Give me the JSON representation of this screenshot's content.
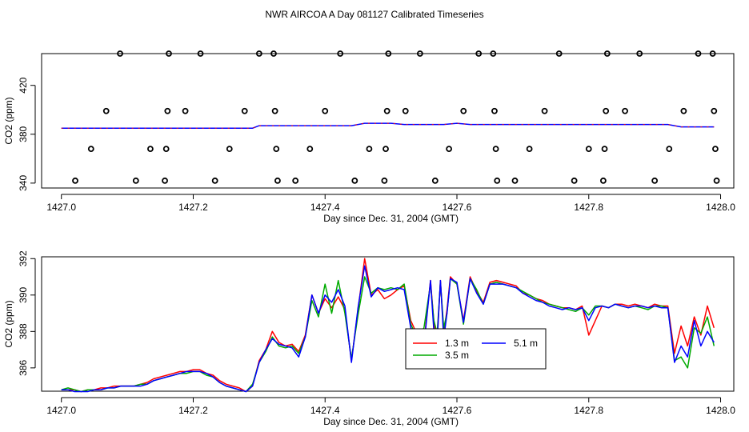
{
  "page": {
    "title": "NWR AIRCOA A  Day 081127  Calibrated Timeseries"
  },
  "chart_data": [
    {
      "type": "scatter",
      "xlabel": "Day since Dec. 31, 2004 (GMT)",
      "ylabel": "CO2 (ppm)",
      "xlim": [
        1426.97,
        1428.02
      ],
      "ylim": [
        336,
        446
      ],
      "xticks": [
        "1427.0",
        "1427.2",
        "1427.4",
        "1427.6",
        "1427.8",
        "1428.0"
      ],
      "xtick_values": [
        1427.0,
        1427.2,
        1427.4,
        1427.6,
        1427.8,
        1428.0
      ],
      "yticks": [
        "340",
        "380",
        "420"
      ],
      "ytick_values": [
        340,
        380,
        420
      ],
      "grid": false,
      "series": [
        {
          "color": "#000000",
          "marker": "open-circle",
          "points": [
            [
              1427.021,
              342
            ],
            [
              1427.045,
              368
            ],
            [
              1427.068,
              399
            ],
            [
              1427.089,
              446
            ],
            [
              1427.113,
              342
            ],
            [
              1427.135,
              368
            ],
            [
              1427.157,
              342
            ],
            [
              1427.159,
              368
            ],
            [
              1427.161,
              399
            ],
            [
              1427.163,
              446
            ],
            [
              1427.188,
              399
            ],
            [
              1427.211,
              446
            ],
            [
              1427.233,
              342
            ],
            [
              1427.255,
              368
            ],
            [
              1427.278,
              399
            ],
            [
              1427.3,
              446
            ],
            [
              1427.322,
              446
            ],
            [
              1427.324,
              399
            ],
            [
              1427.326,
              368
            ],
            [
              1427.328,
              342
            ],
            [
              1427.355,
              342
            ],
            [
              1427.377,
              368
            ],
            [
              1427.4,
              399
            ],
            [
              1427.423,
              446
            ],
            [
              1427.445,
              342
            ],
            [
              1427.467,
              368
            ],
            [
              1427.49,
              342
            ],
            [
              1427.492,
              368
            ],
            [
              1427.494,
              399
            ],
            [
              1427.496,
              446
            ],
            [
              1427.522,
              399
            ],
            [
              1427.544,
              446
            ],
            [
              1427.567,
              342
            ],
            [
              1427.588,
              368
            ],
            [
              1427.61,
              399
            ],
            [
              1427.633,
              446
            ],
            [
              1427.655,
              446
            ],
            [
              1427.657,
              399
            ],
            [
              1427.659,
              368
            ],
            [
              1427.661,
              342
            ],
            [
              1427.688,
              342
            ],
            [
              1427.71,
              368
            ],
            [
              1427.733,
              399
            ],
            [
              1427.755,
              446
            ],
            [
              1427.778,
              342
            ],
            [
              1427.8,
              368
            ],
            [
              1427.822,
              342
            ],
            [
              1427.824,
              368
            ],
            [
              1427.826,
              399
            ],
            [
              1427.828,
              446
            ],
            [
              1427.855,
              399
            ],
            [
              1427.877,
              446
            ],
            [
              1427.9,
              342
            ],
            [
              1427.922,
              368
            ],
            [
              1427.944,
              399
            ],
            [
              1427.966,
              446
            ],
            [
              1427.988,
              446
            ],
            [
              1427.99,
              399
            ],
            [
              1427.992,
              368
            ],
            [
              1427.994,
              342
            ]
          ]
        },
        {
          "name": "1.3 m",
          "color": "#ff0000",
          "marker": "line",
          "x": [
            1427.0,
            1427.05,
            1427.1,
            1427.15,
            1427.2,
            1427.25,
            1427.28,
            1427.29,
            1427.3,
            1427.32,
            1427.35,
            1427.38,
            1427.4,
            1427.42,
            1427.44,
            1427.46,
            1427.48,
            1427.5,
            1427.52,
            1427.54,
            1427.56,
            1427.58,
            1427.6,
            1427.62,
            1427.64,
            1427.66,
            1427.68,
            1427.7,
            1427.72,
            1427.74,
            1427.76,
            1427.78,
            1427.8,
            1427.82,
            1427.84,
            1427.86,
            1427.88,
            1427.9,
            1427.92,
            1427.94,
            1427.96,
            1427.98,
            1427.99
          ],
          "y": [
            385,
            385,
            385,
            385,
            385,
            385,
            385,
            385,
            387,
            387,
            387,
            387,
            387,
            387,
            387,
            389,
            389,
            389,
            388,
            388,
            388,
            388,
            389,
            388,
            388,
            388,
            388,
            388,
            388,
            388,
            388,
            388,
            388,
            388,
            388,
            388,
            388,
            388,
            388,
            386,
            386,
            386,
            386
          ]
        }
      ]
    },
    {
      "type": "line",
      "xlabel": "Day since Dec. 31, 2004 (GMT)",
      "ylabel": "CO2 (ppm)",
      "xlim": [
        1426.97,
        1428.02
      ],
      "ylim": [
        384.72,
        392.1
      ],
      "xticks": [
        "1427.0",
        "1427.2",
        "1427.4",
        "1427.6",
        "1427.8",
        "1428.0"
      ],
      "xtick_values": [
        1427.0,
        1427.2,
        1427.4,
        1427.6,
        1427.8,
        1428.0
      ],
      "yticks": [
        "386",
        "388",
        "390",
        "392"
      ],
      "ytick_values": [
        386,
        388,
        390,
        392
      ],
      "grid": false,
      "legend": {
        "position": "center-right",
        "entries": [
          {
            "label": "1.3 m",
            "color": "#ff0000"
          },
          {
            "label": "3.5 m",
            "color": "#00aa00"
          },
          {
            "label": "5.1 m",
            "color": "#0000ff"
          }
        ]
      },
      "x": [
        1427.0,
        1427.01,
        1427.02,
        1427.03,
        1427.04,
        1427.05,
        1427.06,
        1427.07,
        1427.08,
        1427.09,
        1427.1,
        1427.11,
        1427.12,
        1427.13,
        1427.14,
        1427.15,
        1427.16,
        1427.17,
        1427.18,
        1427.19,
        1427.2,
        1427.21,
        1427.22,
        1427.23,
        1427.24,
        1427.25,
        1427.26,
        1427.27,
        1427.28,
        1427.29,
        1427.3,
        1427.31,
        1427.32,
        1427.33,
        1427.34,
        1427.35,
        1427.36,
        1427.37,
        1427.38,
        1427.39,
        1427.4,
        1427.41,
        1427.42,
        1427.43,
        1427.44,
        1427.45,
        1427.46,
        1427.47,
        1427.48,
        1427.49,
        1427.5,
        1427.51,
        1427.52,
        1427.53,
        1427.54,
        1427.55,
        1427.56,
        1427.565,
        1427.57,
        1427.575,
        1427.58,
        1427.585,
        1427.59,
        1427.6,
        1427.61,
        1427.62,
        1427.63,
        1427.64,
        1427.65,
        1427.66,
        1427.67,
        1427.68,
        1427.69,
        1427.7,
        1427.71,
        1427.72,
        1427.73,
        1427.74,
        1427.75,
        1427.76,
        1427.77,
        1427.78,
        1427.79,
        1427.8,
        1427.81,
        1427.82,
        1427.83,
        1427.84,
        1427.85,
        1427.86,
        1427.87,
        1427.88,
        1427.89,
        1427.9,
        1427.91,
        1427.92,
        1427.93,
        1427.94,
        1427.95,
        1427.96,
        1427.97,
        1427.98,
        1427.99
      ],
      "series": [
        {
          "name": "1.3 m",
          "color": "#ff0000",
          "values": [
            384.8,
            384.8,
            384.8,
            384.7,
            384.8,
            384.8,
            384.9,
            384.9,
            385.0,
            385.0,
            385.0,
            385.0,
            385.1,
            385.2,
            385.4,
            385.5,
            385.6,
            385.7,
            385.8,
            385.8,
            385.9,
            385.9,
            385.7,
            385.6,
            385.3,
            385.1,
            385.0,
            384.9,
            384.7,
            385.0,
            386.4,
            387.0,
            388.0,
            387.4,
            387.2,
            387.3,
            386.9,
            387.8,
            390.0,
            389.0,
            389.8,
            389.3,
            389.9,
            389.2,
            386.4,
            389.2,
            392.0,
            390.0,
            390.3,
            389.8,
            390.0,
            390.3,
            390.5,
            388.6,
            387.8,
            387.4,
            390.8,
            388.5,
            387.4,
            390.8,
            387.9,
            389.2,
            391.0,
            390.6,
            388.6,
            391.0,
            390.2,
            389.6,
            390.7,
            390.8,
            390.7,
            390.6,
            390.5,
            390.1,
            390.0,
            389.8,
            389.7,
            389.5,
            389.4,
            389.3,
            389.3,
            389.2,
            389.4,
            387.8,
            388.6,
            389.4,
            389.3,
            389.5,
            389.5,
            389.4,
            389.5,
            389.4,
            389.3,
            389.5,
            389.4,
            389.4,
            386.8,
            388.3,
            387.2,
            388.8,
            387.8,
            389.4,
            388.2
          ]
        },
        {
          "name": "3.5 m",
          "color": "#00aa00",
          "values": [
            384.8,
            384.9,
            384.8,
            384.7,
            384.8,
            384.8,
            384.8,
            384.9,
            384.9,
            385.0,
            385.0,
            385.0,
            385.1,
            385.1,
            385.3,
            385.4,
            385.5,
            385.6,
            385.7,
            385.7,
            385.8,
            385.8,
            385.6,
            385.5,
            385.2,
            385.0,
            384.9,
            384.8,
            384.7,
            385.1,
            386.3,
            386.9,
            387.7,
            387.2,
            387.1,
            387.2,
            386.8,
            387.7,
            389.7,
            388.8,
            390.6,
            389.0,
            390.8,
            389.0,
            386.5,
            388.9,
            391.0,
            390.1,
            390.4,
            390.3,
            390.4,
            390.3,
            390.6,
            388.4,
            387.6,
            388.2,
            390.6,
            388.6,
            387.9,
            390.7,
            388.2,
            389.0,
            390.9,
            390.6,
            388.4,
            390.9,
            390.3,
            389.5,
            390.6,
            390.7,
            390.6,
            390.5,
            390.4,
            390.2,
            390.0,
            389.8,
            389.6,
            389.5,
            389.4,
            389.3,
            389.2,
            389.1,
            389.3,
            388.9,
            389.4,
            389.4,
            389.3,
            389.5,
            389.4,
            389.3,
            389.4,
            389.3,
            389.2,
            389.4,
            389.4,
            389.3,
            386.4,
            386.6,
            386.0,
            388.2,
            387.9,
            388.8,
            387.2
          ]
        },
        {
          "name": "5.1 m",
          "color": "#0000ff",
          "values": [
            384.8,
            384.8,
            384.7,
            384.7,
            384.7,
            384.8,
            384.8,
            384.9,
            384.9,
            385.0,
            385.0,
            385.0,
            385.0,
            385.1,
            385.3,
            385.4,
            385.5,
            385.6,
            385.7,
            385.8,
            385.8,
            385.8,
            385.7,
            385.5,
            385.2,
            385.0,
            384.9,
            384.8,
            384.7,
            385.0,
            386.3,
            387.0,
            387.6,
            387.3,
            387.2,
            387.1,
            386.6,
            387.7,
            390.0,
            389.0,
            390.0,
            389.6,
            390.3,
            389.4,
            386.3,
            389.3,
            391.6,
            389.9,
            390.4,
            390.2,
            390.3,
            390.4,
            390.3,
            388.2,
            387.6,
            387.2,
            390.8,
            388.0,
            387.5,
            390.8,
            387.6,
            389.0,
            390.9,
            390.7,
            388.5,
            390.9,
            390.1,
            389.5,
            390.6,
            390.6,
            390.6,
            390.5,
            390.4,
            390.1,
            389.9,
            389.7,
            389.6,
            389.4,
            389.3,
            389.2,
            389.3,
            389.2,
            389.3,
            388.6,
            389.3,
            389.4,
            389.3,
            389.5,
            389.4,
            389.3,
            389.4,
            389.4,
            389.3,
            389.4,
            389.3,
            389.3,
            386.3,
            387.2,
            386.6,
            388.6,
            387.2,
            388.0,
            387.4
          ]
        }
      ]
    }
  ]
}
